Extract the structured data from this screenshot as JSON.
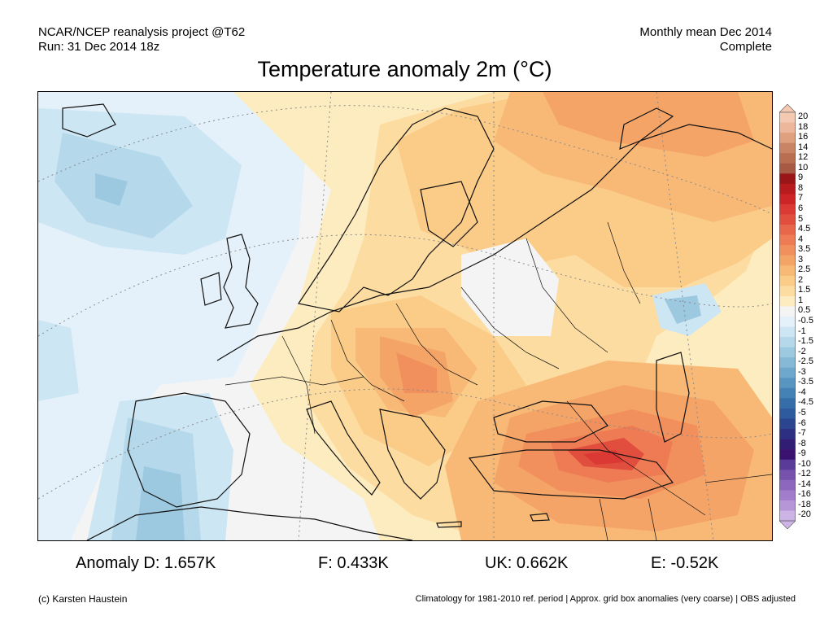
{
  "header": {
    "left_line1": "NCAR/NCEP reanalysis project @T62",
    "left_line2": "Run: 31 Dec 2014 18z",
    "right_line1": "Monthly mean Dec 2014",
    "right_line2": "Complete"
  },
  "title": "Temperature anomaly 2m (°C)",
  "colorbar": {
    "levels": [
      "20",
      "18",
      "16",
      "14",
      "12",
      "10",
      "9",
      "8",
      "7",
      "6",
      "5",
      "4.5",
      "4",
      "3.5",
      "3",
      "2.5",
      "2",
      "1.5",
      "1",
      "0.5",
      "-0.5",
      "-1",
      "-1.5",
      "-2",
      "-2.5",
      "-3",
      "-3.5",
      "-4",
      "-4.5",
      "-5",
      "-6",
      "-7",
      "-8",
      "-9",
      "-10",
      "-12",
      "-14",
      "-16",
      "-18",
      "-20"
    ],
    "colors": [
      "#f4c9b2",
      "#edb79c",
      "#dea07e",
      "#c98465",
      "#b96e52",
      "#a85a45",
      "#9a1518",
      "#b81b1e",
      "#cc2427",
      "#db3a34",
      "#e24e3e",
      "#e8664a",
      "#ee7b53",
      "#f1905c",
      "#f5a468",
      "#f8b977",
      "#fbcb88",
      "#fcdca1",
      "#fdecbf",
      "#f4f4f4",
      "#e4f1fa",
      "#cde6f3",
      "#b5d8ea",
      "#9cc9e0",
      "#85b9d6",
      "#6ea8cc",
      "#5896c1",
      "#4482b6",
      "#356ea9",
      "#2d5b9d",
      "#2b4590",
      "#2c2f82",
      "#311d74",
      "#3b1270",
      "#5b3b99",
      "#7752ad",
      "#8d66bd",
      "#a27dcb",
      "#b796d8",
      "#ccb4e6"
    ]
  },
  "stats": [
    {
      "label": "Anomaly D: 1.657K"
    },
    {
      "label": "F: 0.433K"
    },
    {
      "label": "UK: 0.662K"
    },
    {
      "label": "E: -0.52K"
    }
  ],
  "footer": {
    "left": "(c) Karsten Haustein",
    "right": "Climatology for 1981-2010 ref. period | Approx. grid box anomalies (very coarse) | OBS adjusted"
  }
}
